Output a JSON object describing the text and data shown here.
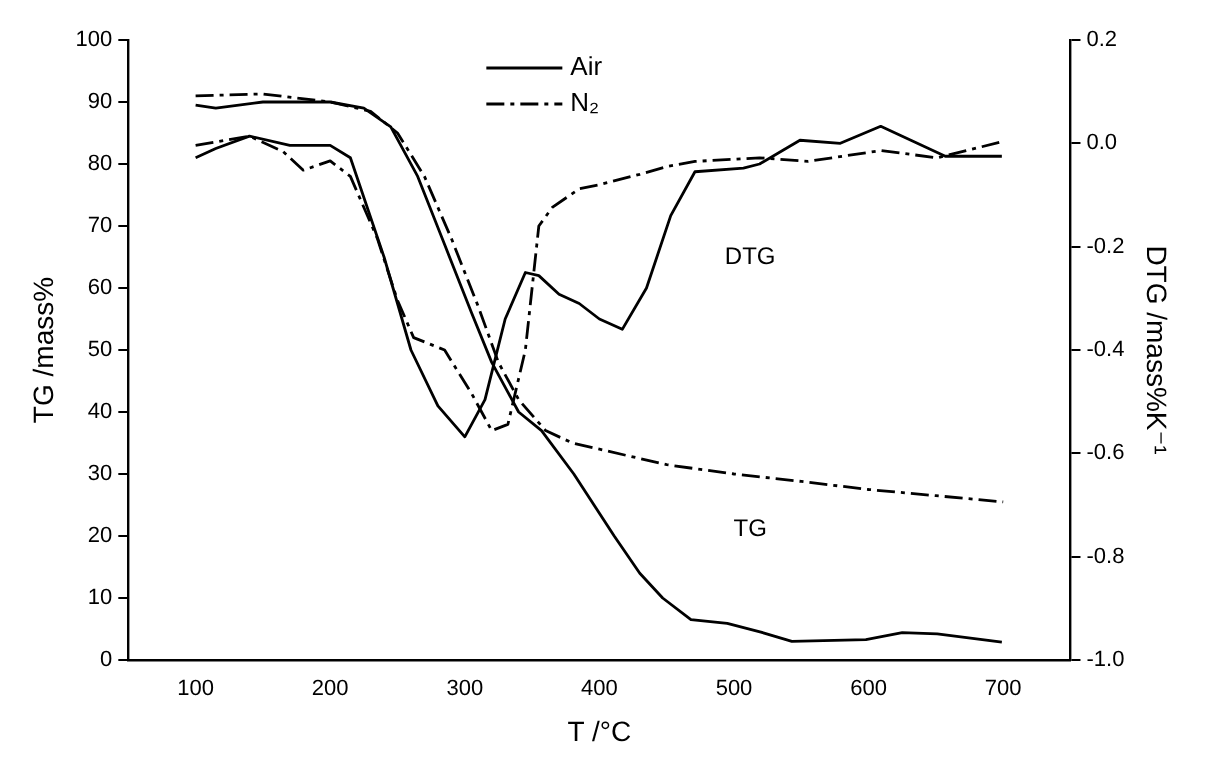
{
  "chart_data": {
    "type": "line",
    "xlabel": "T /°C",
    "ylabel": "TG /mass%",
    "y2label": "DTG /mass%K⁻¹",
    "xlim": [
      50,
      750
    ],
    "xticks": [
      100,
      200,
      300,
      400,
      500,
      600,
      700
    ],
    "ylim": [
      0,
      100
    ],
    "yticks": [
      0,
      10,
      20,
      30,
      40,
      50,
      60,
      70,
      80,
      90,
      100
    ],
    "y2lim": [
      -1.0,
      0.2
    ],
    "y2ticks": [
      {
        "value": -1.0,
        "label": "-1.0"
      },
      -0.8,
      -0.6,
      -0.4,
      -0.2,
      {
        "value": 0.0,
        "label": "0.0"
      },
      0.2
    ],
    "grid": false,
    "legend": "top",
    "marker": "none",
    "annotations": [
      "DTG",
      "TG"
    ],
    "series": [
      {
        "name": "Air",
        "color": "#000000",
        "line_style": "solid",
        "x": [
          100,
          115,
          150,
          200,
          225,
          245,
          265,
          285,
          305,
          320,
          340,
          357,
          381,
          411,
          430,
          447,
          468,
          495,
          520,
          543,
          598,
          625,
          651,
          699
        ],
        "values": [
          89.5,
          89,
          90,
          90,
          89,
          86,
          78,
          67,
          56,
          48,
          40,
          37,
          30,
          20,
          14,
          10,
          6.5,
          5.9,
          4.5,
          3,
          3.3,
          4.4,
          4.2,
          2.9
        ]
      },
      {
        "name": "N₂",
        "color": "#000000",
        "line_style": "dashed",
        "x": [
          100,
          150,
          200,
          230,
          250,
          270,
          290,
          310,
          325,
          340,
          360,
          380,
          400,
          450,
          500,
          550,
          600,
          650,
          700
        ],
        "values": [
          91,
          91.3,
          90,
          88.5,
          85,
          78,
          68,
          57,
          48,
          42,
          37,
          35,
          34,
          31.5,
          30,
          28.8,
          27.5,
          26.5,
          25.5
        ]
      },
      {
        "axis": "y2",
        "color": "#000000",
        "line_style": "solid",
        "x": [
          100,
          115,
          140,
          170,
          200,
          215,
          240,
          260,
          280,
          300,
          315,
          330,
          345,
          355,
          370,
          385,
          400,
          417,
          435,
          453,
          471,
          507,
          519,
          549,
          579,
          609,
          657,
          699
        ],
        "values": [
          -0.028,
          -0.01,
          0.014,
          -0.004,
          -0.004,
          -0.028,
          -0.22,
          -0.4,
          -0.508,
          -0.568,
          -0.496,
          -0.34,
          -0.25,
          -0.256,
          -0.292,
          -0.31,
          -0.34,
          -0.36,
          -0.28,
          -0.14,
          -0.055,
          -0.048,
          -0.04,
          0.006,
          0.0,
          0.033,
          -0.025,
          -0.025
        ]
      },
      {
        "axis": "y2",
        "color": "#000000",
        "line_style": "dashed",
        "x": [
          100,
          140,
          165,
          180,
          200,
          215,
          235,
          250,
          262,
          285,
          305,
          320,
          332,
          345,
          355,
          365,
          385,
          400,
          430,
          450,
          471,
          519,
          555,
          609,
          651,
          699
        ],
        "values": [
          -0.004,
          0.014,
          -0.016,
          -0.052,
          -0.034,
          -0.064,
          -0.184,
          -0.304,
          -0.376,
          -0.4,
          -0.484,
          -0.556,
          -0.544,
          -0.4,
          -0.16,
          -0.124,
          -0.088,
          -0.08,
          -0.06,
          -0.045,
          -0.035,
          -0.028,
          -0.035,
          -0.014,
          -0.028,
          0.003
        ]
      }
    ]
  }
}
